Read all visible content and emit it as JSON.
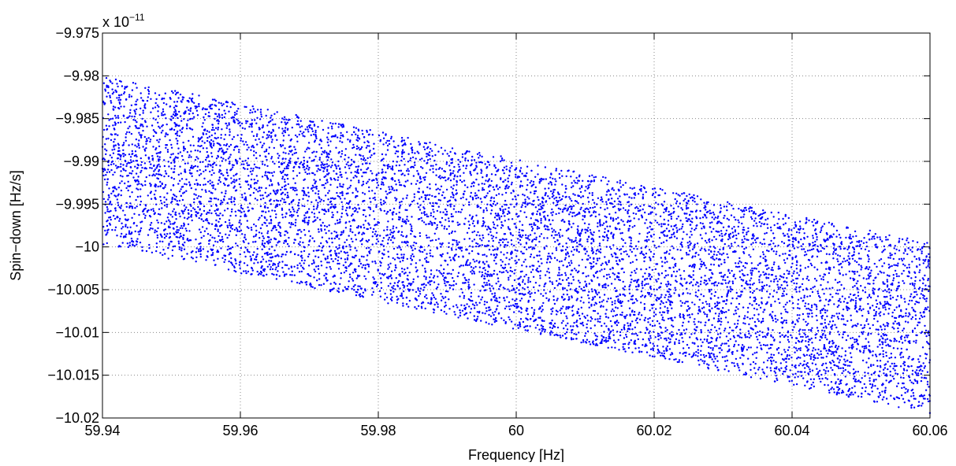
{
  "chart_data": {
    "type": "scatter",
    "xlabel": "Frequency [Hz]",
    "ylabel": "Spin−down [Hz/s]",
    "y_multiplier_label": "x 10",
    "y_multiplier_exponent": "−11",
    "xlim": [
      59.94,
      60.06
    ],
    "ylim": [
      -10.02,
      -9.975
    ],
    "x_ticks": [
      59.94,
      59.96,
      59.98,
      60.0,
      60.02,
      60.04,
      60.06
    ],
    "x_tick_labels": [
      "59.94",
      "59.96",
      "59.98",
      "60",
      "60.02",
      "60.04",
      "60.06"
    ],
    "y_ticks": [
      -9.975,
      -9.98,
      -9.985,
      -9.99,
      -9.995,
      -10.0,
      -10.005,
      -10.01,
      -10.015,
      -10.02
    ],
    "y_tick_labels": [
      "−9.975",
      "−9.98",
      "−9.985",
      "−9.99",
      "−9.995",
      "−10",
      "−10.005",
      "−10.01",
      "−10.015",
      "−10.02"
    ],
    "grid": true,
    "marker_color": "#0000ff",
    "series": [
      {
        "points_count": 9000,
        "distribution": "uniform random within a parallelogram band",
        "band_upper_edge": [
          [
            59.94,
            -9.98
          ],
          [
            60.06,
            -9.9995
          ]
        ],
        "band_lower_edge": [
          [
            59.94,
            -9.9998
          ],
          [
            60.06,
            -10.0195
          ]
        ]
      }
    ]
  }
}
